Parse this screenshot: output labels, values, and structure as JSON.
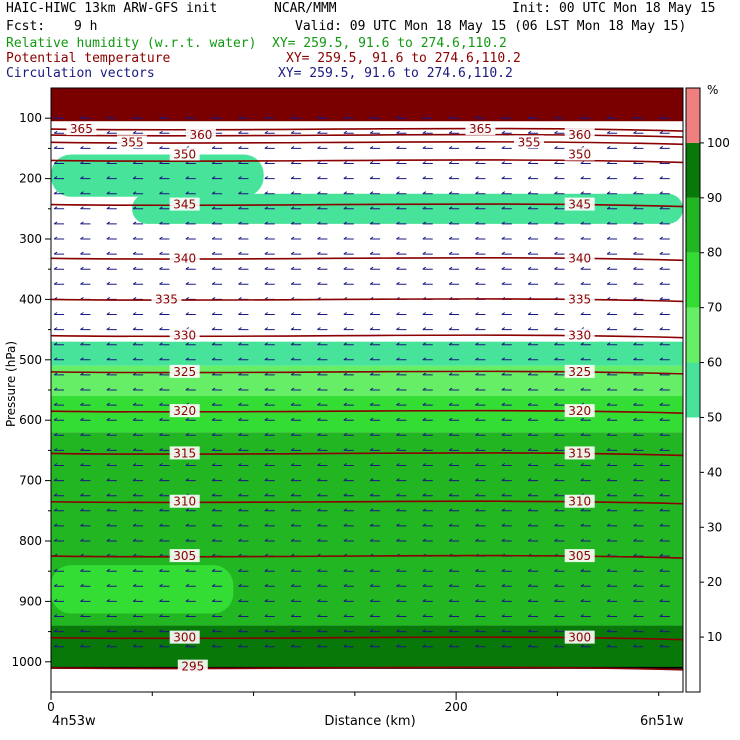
{
  "header": {
    "model": "HAIC-HIWC 13km ARW-GFS init",
    "org": "NCAR/MMM",
    "init": "Init: 00 UTC Mon 18 May 15",
    "fcst_label": "Fcst:",
    "fcst_value": "9 h",
    "valid": "Valid: 09 UTC Mon 18 May 15 (06 LST Mon 18 May 15)",
    "fields": [
      {
        "name": "Relative humidity (w.r.t. water)",
        "xy": "XY= 259.5, 91.6 to 274.6,110.2",
        "color": "#119911"
      },
      {
        "name": "Potential temperature",
        "xy": "XY= 259.5, 91.6 to 274.6,110.2",
        "color": "#8b0000"
      },
      {
        "name": "Circulation vectors",
        "xy": "XY= 259.5, 91.6 to 274.6,110.2",
        "color": "#1a1a80"
      }
    ]
  },
  "chart_data": {
    "type": "heatmap",
    "xlabel": "Distance (km)",
    "ylabel": "Pressure (hPa)",
    "x_ticks": [
      0,
      200
    ],
    "xlim": [
      0,
      312
    ],
    "y_ticks": [
      100,
      200,
      300,
      400,
      500,
      600,
      700,
      800,
      900,
      1000
    ],
    "ylim": [
      50,
      1050
    ],
    "y_scale": "linear (inverted)",
    "left_location": "4n53w",
    "right_location": "6n51w",
    "colorbar": {
      "unit": "%",
      "ticks": [
        10,
        20,
        30,
        40,
        50,
        60,
        70,
        80,
        90,
        100
      ],
      "bins": [
        {
          "from": 0,
          "to": 50,
          "color": "#ffffff"
        },
        {
          "from": 50,
          "to": 60,
          "color": "#48e39a"
        },
        {
          "from": 60,
          "to": 70,
          "color": "#66ee66"
        },
        {
          "from": 70,
          "to": 80,
          "color": "#33dd33"
        },
        {
          "from": 80,
          "to": 90,
          "color": "#22b622"
        },
        {
          "from": 90,
          "to": 100,
          "color": "#087808"
        },
        {
          "from": 100,
          "to": 110,
          "color": "#f08080"
        }
      ]
    },
    "rh_layers": [
      {
        "p_top": 50,
        "p_bottom": 105,
        "rh": 105,
        "color": "#7a0000"
      },
      {
        "p_top": 160,
        "p_bottom": 230,
        "x_from": 0,
        "x_to": 105,
        "rh": 55
      },
      {
        "p_top": 225,
        "p_bottom": 275,
        "x_from": 40,
        "x_to": 312,
        "rh": 55
      },
      {
        "p_top": 470,
        "p_bottom": 510,
        "rh": 55
      },
      {
        "p_top": 510,
        "p_bottom": 560,
        "rh": 65
      },
      {
        "p_top": 560,
        "p_bottom": 620,
        "rh": 75
      },
      {
        "p_top": 620,
        "p_bottom": 940,
        "rh": 85
      },
      {
        "p_top": 840,
        "p_bottom": 920,
        "x_from": 0,
        "x_to": 90,
        "rh": 75
      },
      {
        "p_top": 940,
        "p_bottom": 1020,
        "rh": 95
      }
    ],
    "theta_contours": [
      {
        "value": 365,
        "p": 118
      },
      {
        "value": 360,
        "p": 128
      },
      {
        "value": 355,
        "p": 140
      },
      {
        "value": 350,
        "p": 170
      },
      {
        "value": 345,
        "p": 243
      },
      {
        "value": 340,
        "p": 332
      },
      {
        "value": 335,
        "p": 400
      },
      {
        "value": 330,
        "p": 460
      },
      {
        "value": 325,
        "p": 520
      },
      {
        "value": 320,
        "p": 585
      },
      {
        "value": 315,
        "p": 655
      },
      {
        "value": 310,
        "p": 735
      },
      {
        "value": 305,
        "p": 825
      },
      {
        "value": 300,
        "p": 960
      },
      {
        "value": 295,
        "p": 1010
      }
    ],
    "contour_labels": [
      {
        "text": "365",
        "x": 15,
        "p": 118
      },
      {
        "text": "365",
        "x": 212,
        "p": 118
      },
      {
        "text": "360",
        "x": 74,
        "p": 128
      },
      {
        "text": "360",
        "x": 261,
        "p": 128
      },
      {
        "text": "355",
        "x": 40,
        "p": 140
      },
      {
        "text": "355",
        "x": 236,
        "p": 140
      },
      {
        "text": "350",
        "x": 66,
        "p": 160
      },
      {
        "text": "350",
        "x": 261,
        "p": 160
      },
      {
        "text": "345",
        "x": 66,
        "p": 243
      },
      {
        "text": "345",
        "x": 261,
        "p": 243
      },
      {
        "text": "340",
        "x": 66,
        "p": 332
      },
      {
        "text": "340",
        "x": 261,
        "p": 332
      },
      {
        "text": "335",
        "x": 57,
        "p": 400
      },
      {
        "text": "335",
        "x": 261,
        "p": 400
      },
      {
        "text": "330",
        "x": 66,
        "p": 460
      },
      {
        "text": "330",
        "x": 261,
        "p": 460
      },
      {
        "text": "325",
        "x": 66,
        "p": 520
      },
      {
        "text": "325",
        "x": 261,
        "p": 520
      },
      {
        "text": "320",
        "x": 66,
        "p": 585
      },
      {
        "text": "320",
        "x": 261,
        "p": 585
      },
      {
        "text": "315",
        "x": 66,
        "p": 655
      },
      {
        "text": "315",
        "x": 261,
        "p": 655
      },
      {
        "text": "310",
        "x": 66,
        "p": 735
      },
      {
        "text": "310",
        "x": 261,
        "p": 735
      },
      {
        "text": "305",
        "x": 66,
        "p": 825
      },
      {
        "text": "305",
        "x": 261,
        "p": 825
      },
      {
        "text": "300",
        "x": 66,
        "p": 960
      },
      {
        "text": "300",
        "x": 261,
        "p": 960
      },
      {
        "text": "295",
        "x": 70,
        "p": 1008
      }
    ],
    "terrain_pressure": 1010,
    "vector_direction": "easterly"
  }
}
